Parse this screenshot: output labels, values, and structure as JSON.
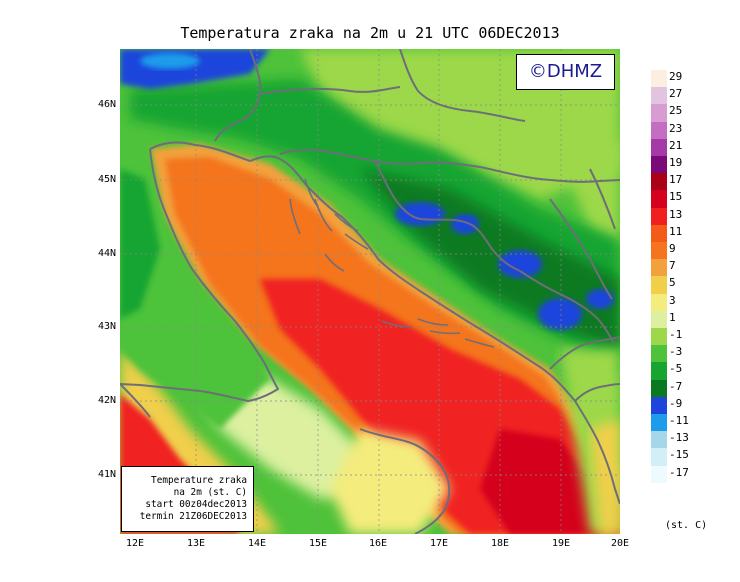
{
  "title": "Temperatura zraka na 2m u 21 UTC 06DEC2013",
  "copyright": "©DHMZ",
  "info_box": {
    "line1": "Temperature zraka",
    "line2": "na 2m (st. C)",
    "line3": "start 00z04dec2013",
    "line4": "termin 21Z06DEC2013"
  },
  "lat_labels": [
    "46N",
    "45N",
    "44N",
    "43N",
    "42N",
    "41N"
  ],
  "lon_labels": [
    "12E",
    "13E",
    "14E",
    "15E",
    "16E",
    "17E",
    "18E",
    "19E",
    "20E"
  ],
  "legend": {
    "unit": "(st. C)",
    "entries": [
      {
        "label": "29",
        "color": "#fdeee2"
      },
      {
        "label": "27",
        "color": "#e2c3e0"
      },
      {
        "label": "25",
        "color": "#d79cd2"
      },
      {
        "label": "23",
        "color": "#c46dc1"
      },
      {
        "label": "21",
        "color": "#a33aa8"
      },
      {
        "label": "19",
        "color": "#7a0a78"
      },
      {
        "label": "17",
        "color": "#aa0018"
      },
      {
        "label": "15",
        "color": "#d4001e"
      },
      {
        "label": "13",
        "color": "#f02020"
      },
      {
        "label": "11",
        "color": "#f45a18"
      },
      {
        "label": "9",
        "color": "#f4741f"
      },
      {
        "label": "7",
        "color": "#f2a13c"
      },
      {
        "label": "5",
        "color": "#f0cf4b"
      },
      {
        "label": "3",
        "color": "#f4ec7d"
      },
      {
        "label": "1",
        "color": "#dcf0a0"
      },
      {
        "label": "-1",
        "color": "#9cd84a"
      },
      {
        "label": "-3",
        "color": "#4ec23a"
      },
      {
        "label": "-5",
        "color": "#17a530"
      },
      {
        "label": "-7",
        "color": "#0a7a22"
      },
      {
        "label": "-9",
        "color": "#1f44dc"
      },
      {
        "label": "-11",
        "color": "#1e9ceb"
      },
      {
        "label": "-13",
        "color": "#a5d6ea"
      },
      {
        "label": "-15",
        "color": "#d2eef6"
      },
      {
        "label": "-17",
        "color": "#eefbfe"
      }
    ]
  }
}
